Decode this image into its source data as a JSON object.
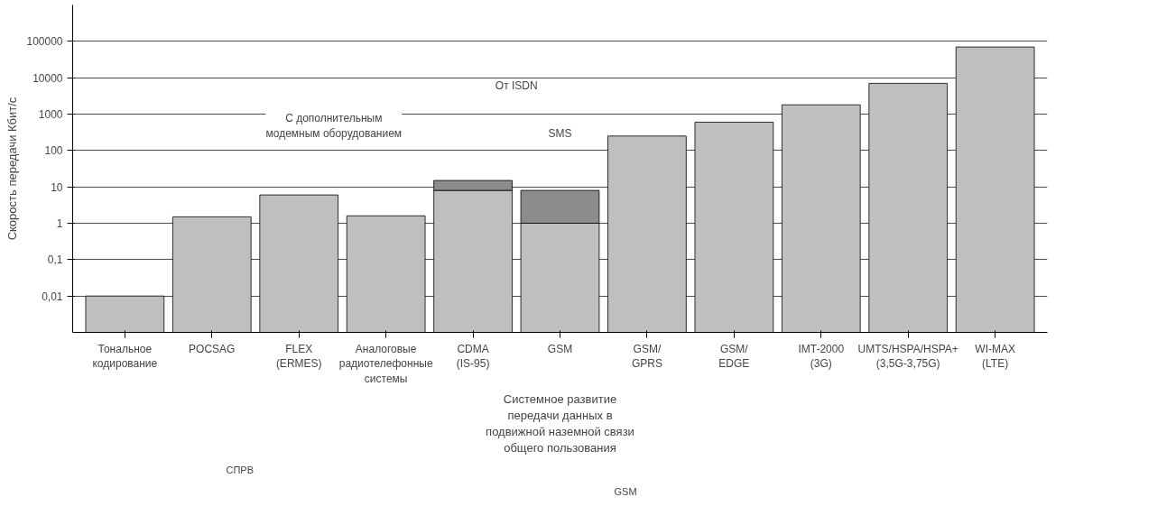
{
  "chart_data": {
    "type": "bar",
    "stacked": true,
    "log": "y",
    "ylabel": "Скорость передачи Кбит/с",
    "xlabel": "Системное развитие\nпередачи данных в\nподвижной наземной связи\nобщего пользования",
    "categories": [
      "Тональное\nкодирование",
      "POCSAG",
      "FLEX\n(ERMES)",
      "Аналоговые\nрадиотелефонные\nсистемы",
      "CDMA\n(IS-95)",
      "GSM",
      "GSM/\nGPRS",
      "GSM/\nEDGE",
      "IMT-2000\n(3G)",
      "UMTS/HSPA/HSPA+\n(3,5G-3,75G)",
      "WI-MAX\n(LTE)"
    ],
    "series": [
      {
        "color": "#bfbfbf",
        "values": [
          0.01,
          1.5,
          6,
          1.6,
          8,
          1,
          250,
          600,
          1800,
          7000,
          70000
        ]
      },
      {
        "color": "#8c8c8c",
        "values": [
          null,
          null,
          null,
          null,
          7,
          7,
          null,
          null,
          null,
          null,
          null
        ]
      }
    ],
    "ylim": [
      0.001,
      1000000
    ],
    "yticks": [
      {
        "value": 0.01,
        "label": "0,01"
      },
      {
        "value": 0.1,
        "label": "0,1"
      },
      1,
      10,
      100,
      1000,
      10000,
      100000
    ],
    "grid": "y",
    "annotations": [
      "С дополнительным\nмодемным оборудованием",
      "От ISDN",
      "SMS",
      "СПРВ",
      "GSM"
    ]
  }
}
